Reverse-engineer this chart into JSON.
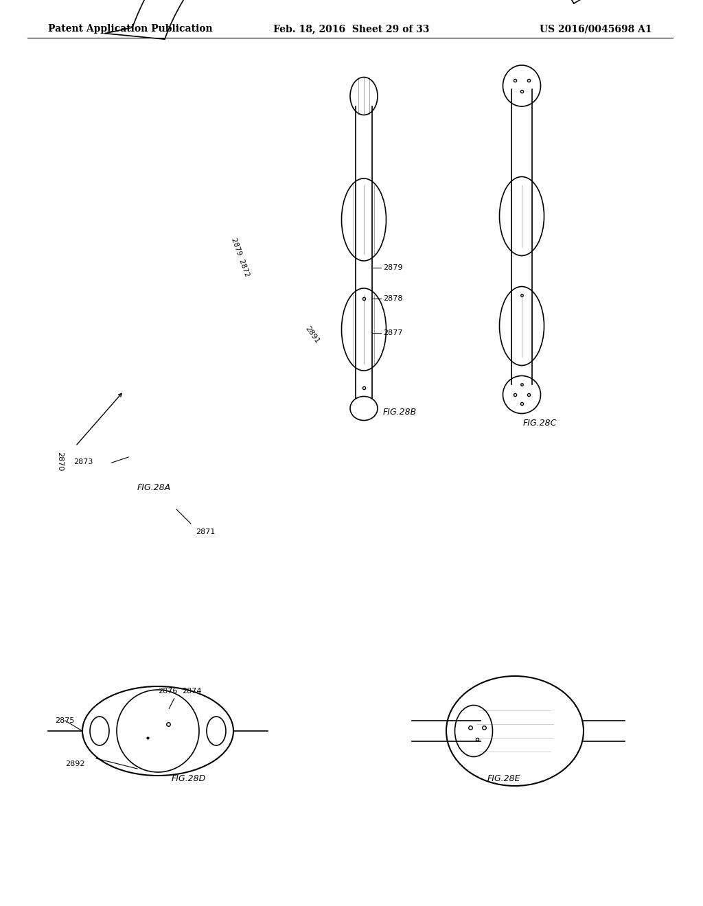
{
  "background_color": "#ffffff",
  "header_left": "Patent Application Publication",
  "header_center": "Feb. 18, 2016  Sheet 29 of 33",
  "header_right": "US 2016/0045698 A1",
  "header_fontsize": 10
}
